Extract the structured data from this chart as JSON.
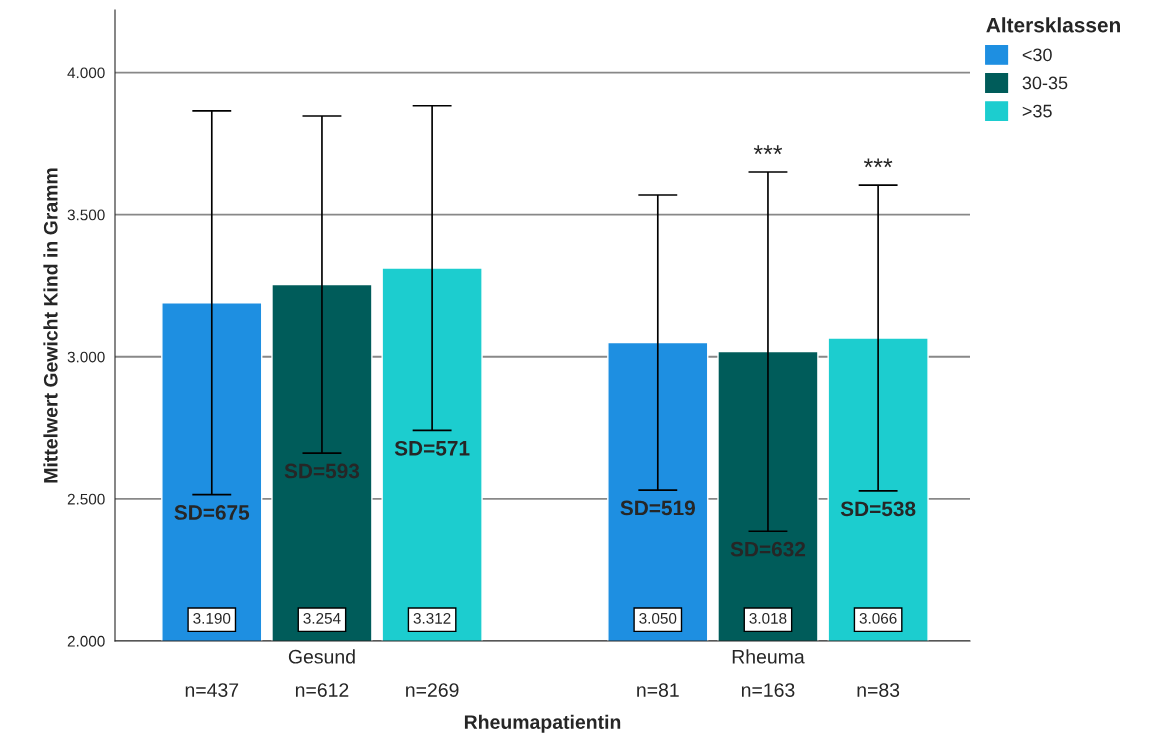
{
  "chart_data": {
    "type": "bar",
    "categories": [
      "Gesund",
      "Rheuma"
    ],
    "xlabel": "Rheumapatientin",
    "ylabel": "Mittelwert Gewicht Kind in Gramm",
    "legend_title": "Altersklassen",
    "series": [
      {
        "name": "<30",
        "color": "#1e8fe1",
        "values": [
          3190,
          3050
        ],
        "errors": [
          675,
          519
        ],
        "value_labels": [
          "3.190",
          "3.050"
        ]
      },
      {
        "name": "30-35",
        "color": "#005c5a",
        "values": [
          3254,
          3018
        ],
        "errors": [
          593,
          632
        ],
        "value_labels": [
          "3.254",
          "3.018"
        ]
      },
      {
        "name": ">35",
        "color": "#1ccdcf",
        "values": [
          3312,
          3066
        ],
        "errors": [
          571,
          538
        ],
        "value_labels": [
          "3.312",
          "3.066"
        ]
      }
    ],
    "ylim": [
      2000,
      4220
    ],
    "yticks": [
      {
        "value": 2000,
        "label": "2.000"
      },
      {
        "value": 2500,
        "label": "2.500"
      },
      {
        "value": 3000,
        "label": "3.000"
      },
      {
        "value": 3500,
        "label": "3.500"
      },
      {
        "value": 4000,
        "label": "4.000"
      }
    ],
    "grid": "y",
    "legend": "right",
    "annotations": [
      "SD=675",
      "SD=593",
      "SD=571",
      "SD=519",
      "SD=632",
      "SD=538",
      "n=437",
      "n=612",
      "n=269",
      "n=81",
      "n=163",
      "n=83",
      "***",
      "***"
    ]
  }
}
